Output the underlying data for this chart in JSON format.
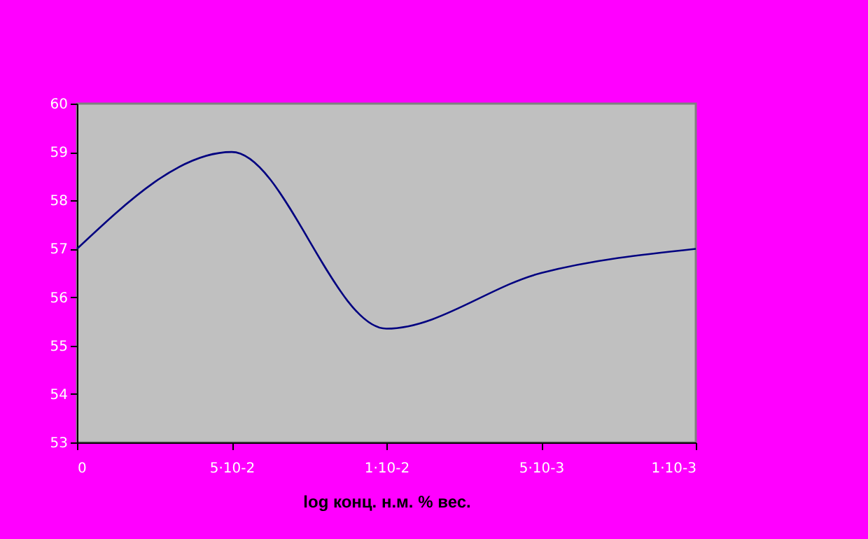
{
  "chart_data": {
    "type": "line",
    "xlabel": "log конц. н.м. % вес.",
    "categories": [
      "0",
      "5·10-2",
      "1·10-2",
      "5·10-3",
      "1·10-3"
    ],
    "series": [
      {
        "color": "#000080",
        "values": [
          57,
          59,
          55.35,
          56.5,
          57
        ]
      }
    ],
    "ylim": [
      53,
      60
    ],
    "yticks": [
      53,
      54,
      55,
      56,
      57,
      58,
      59,
      60
    ],
    "grid": false,
    "legend": false,
    "marker": "none",
    "line_style": "solid"
  }
}
